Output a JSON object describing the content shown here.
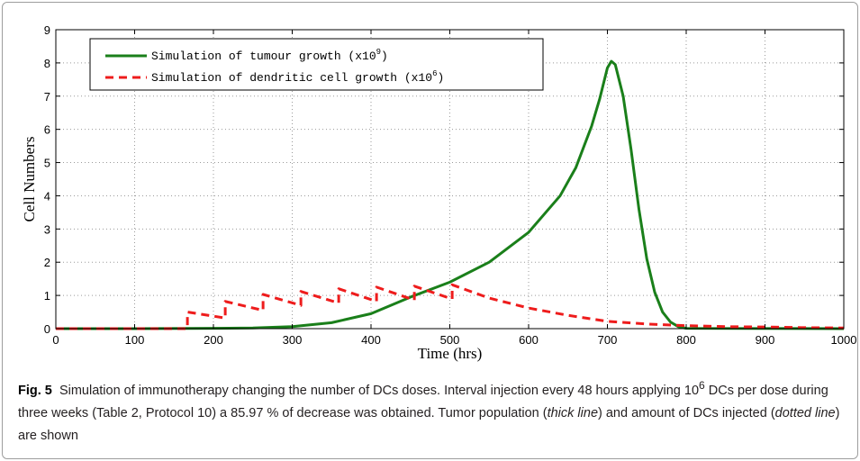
{
  "caption": {
    "label": "Fig. 5",
    "part1": "Simulation of immunotherapy changing the number of DCs doses. Interval injection every 48 hours applying 10",
    "sup": "6",
    "part2": " DCs per dose during three weeks (Table 2, Protocol 10) a 85.97 % of decrease was obtained. Tumor population (",
    "em1": "thick line",
    "part3": ") and amount of DCs injected (",
    "em2": "dotted line",
    "part4": ") are shown"
  },
  "chart_data": {
    "type": "line",
    "xlabel": "Time (hrs)",
    "ylabel": "Cell Numbers",
    "xlim": [
      0,
      1000
    ],
    "ylim": [
      0,
      9
    ],
    "xticks": [
      0,
      100,
      200,
      300,
      400,
      500,
      600,
      700,
      800,
      900,
      1000
    ],
    "yticks": [
      0,
      1,
      2,
      3,
      4,
      5,
      6,
      7,
      8,
      9
    ],
    "grid": true,
    "legend_position": "top-left",
    "series": [
      {
        "name": "Simulation of tumour growth (x10",
        "name_sup": "9",
        "name_suffix": ")",
        "color": "#1a7f1a",
        "style": "solid",
        "x": [
          0,
          100,
          200,
          250,
          300,
          350,
          400,
          450,
          500,
          550,
          600,
          640,
          660,
          680,
          690,
          700,
          705,
          710,
          720,
          730,
          740,
          750,
          760,
          770,
          780,
          790,
          800,
          1000
        ],
        "y": [
          0,
          0,
          0.01,
          0.02,
          0.06,
          0.18,
          0.45,
          0.95,
          1.4,
          2.0,
          2.9,
          4.0,
          4.85,
          6.1,
          6.9,
          7.85,
          8.05,
          7.95,
          7.0,
          5.4,
          3.6,
          2.1,
          1.1,
          0.5,
          0.2,
          0.06,
          0.01,
          0
        ]
      },
      {
        "name": "Simulation of dendritic cell growth (x10",
        "name_sup": "6",
        "name_suffix": ")",
        "color": "#ee1c1c",
        "style": "dashed",
        "x": [
          0,
          167,
          167,
          215,
          215,
          263,
          263,
          311,
          311,
          359,
          359,
          407,
          407,
          455,
          455,
          503,
          503,
          550,
          600,
          650,
          700,
          750,
          800,
          850,
          900,
          950,
          1000
        ],
        "y": [
          0,
          0,
          0.5,
          0.32,
          0.82,
          0.55,
          1.03,
          0.7,
          1.12,
          0.77,
          1.2,
          0.82,
          1.25,
          0.86,
          1.28,
          0.89,
          1.32,
          0.92,
          0.62,
          0.4,
          0.22,
          0.14,
          0.09,
          0.06,
          0.05,
          0.03,
          0.02
        ]
      }
    ]
  }
}
